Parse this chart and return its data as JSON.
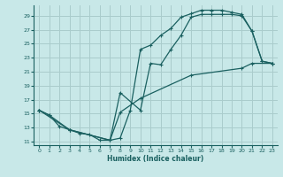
{
  "xlabel": "Humidex (Indice chaleur)",
  "bg_color": "#c8e8e8",
  "grid_color": "#aacccc",
  "line_color": "#1a6060",
  "xlim": [
    -0.5,
    23.5
  ],
  "ylim": [
    10.5,
    30.5
  ],
  "xticks": [
    0,
    1,
    2,
    3,
    4,
    5,
    6,
    7,
    8,
    9,
    10,
    11,
    12,
    13,
    14,
    15,
    16,
    17,
    18,
    19,
    20,
    21,
    22,
    23
  ],
  "yticks": [
    11,
    13,
    15,
    17,
    19,
    21,
    23,
    25,
    27,
    29
  ],
  "line1_x": [
    0,
    1,
    2,
    3,
    4,
    5,
    6,
    7,
    8,
    9,
    10,
    11,
    12,
    13,
    14,
    15,
    16,
    17,
    18,
    19,
    20,
    21,
    22,
    23
  ],
  "line1_y": [
    15.5,
    14.8,
    13.2,
    12.7,
    12.2,
    12.0,
    11.2,
    11.2,
    11.5,
    15.5,
    24.2,
    24.8,
    26.2,
    27.2,
    28.8,
    29.3,
    29.8,
    29.8,
    29.8,
    29.5,
    29.2,
    26.8,
    22.5,
    22.2
  ],
  "line2_x": [
    0,
    1,
    3,
    7,
    8,
    10,
    11,
    12,
    13,
    14,
    15,
    16,
    17,
    18,
    19,
    20,
    21,
    22,
    23
  ],
  "line2_y": [
    15.5,
    14.8,
    12.7,
    11.2,
    18.0,
    15.5,
    22.2,
    22.0,
    24.2,
    26.2,
    28.8,
    29.2,
    29.2,
    29.2,
    29.2,
    29.0,
    26.8,
    22.5,
    22.2
  ],
  "line3_x": [
    0,
    3,
    7,
    8,
    10,
    15,
    20,
    21,
    23
  ],
  "line3_y": [
    15.5,
    12.7,
    11.2,
    15.2,
    17.2,
    20.5,
    21.5,
    22.2,
    22.2
  ]
}
